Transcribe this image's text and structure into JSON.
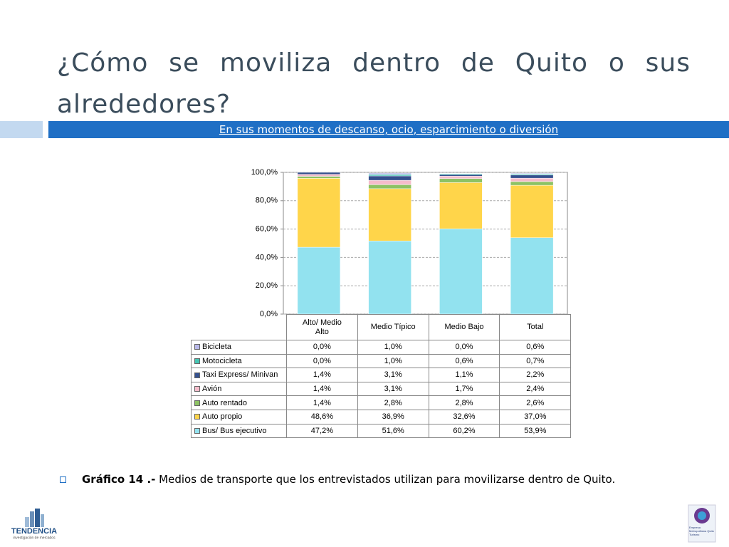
{
  "title": "¿Cómo se moviliza dentro de Quito o sus alrededores?",
  "subtitle": "En sus momentos de descanso, ocio, esparcimiento o diversión",
  "chart_data": {
    "type": "stacked_bar",
    "categories": [
      "Alto/ Medio Alto",
      "Medio Típico",
      "Medio Bajo",
      "Total"
    ],
    "series": [
      {
        "name": "Bicicleta",
        "color": "#b9b9ea",
        "values": [
          0.0,
          1.0,
          0.0,
          0.6
        ],
        "value_labels": [
          "0,0%",
          "1,0%",
          "0,0%",
          "0,6%"
        ]
      },
      {
        "name": "Motocicleta",
        "color": "#45c4b2",
        "values": [
          0.0,
          1.0,
          0.6,
          0.7
        ],
        "value_labels": [
          "0,0%",
          "1,0%",
          "0,6%",
          "0,7%"
        ]
      },
      {
        "name": "Taxi Express/ Minivan",
        "color": "#34508e",
        "values": [
          1.4,
          3.1,
          1.1,
          2.2
        ],
        "value_labels": [
          "1,4%",
          "3,1%",
          "1,1%",
          "2,2%"
        ]
      },
      {
        "name": "Avión",
        "color": "#f6bccb",
        "values": [
          1.4,
          3.1,
          1.7,
          2.4
        ],
        "value_labels": [
          "1,4%",
          "3,1%",
          "1,7%",
          "2,4%"
        ]
      },
      {
        "name": "Auto rentado",
        "color": "#8dc264",
        "values": [
          1.4,
          2.8,
          2.8,
          2.6
        ],
        "value_labels": [
          "1,4%",
          "2,8%",
          "2,8%",
          "2,6%"
        ]
      },
      {
        "name": "Auto propio",
        "color": "#ffd54a",
        "values": [
          48.6,
          36.9,
          32.6,
          37.0
        ],
        "value_labels": [
          "48,6%",
          "36,9%",
          "32,6%",
          "37,0%"
        ]
      },
      {
        "name": "Bus/ Bus ejecutivo",
        "color": "#92e2ef",
        "values": [
          47.2,
          51.6,
          60.2,
          53.9
        ],
        "value_labels": [
          "47,2%",
          "51,6%",
          "60,2%",
          "53,9%"
        ]
      }
    ],
    "ylim": [
      0,
      100
    ],
    "yticks": [
      {
        "value": 0,
        "label": "0,0%"
      },
      {
        "value": 20,
        "label": "20,0%"
      },
      {
        "value": 40,
        "label": "40,0%"
      },
      {
        "value": 60,
        "label": "60,0%"
      },
      {
        "value": 80,
        "label": "80,0%"
      },
      {
        "value": 100,
        "label": "100,0%"
      }
    ],
    "grid": true
  },
  "caption": {
    "label": "Gráfico 14 .-",
    "text": "Medios de transporte que los entrevistados utilizan para movilizarse dentro de Quito."
  },
  "logos": {
    "left": "TENDENCIA",
    "left_sub": "investigación de mercados",
    "right": "Empresa Metropolitana Quito Turismo"
  }
}
